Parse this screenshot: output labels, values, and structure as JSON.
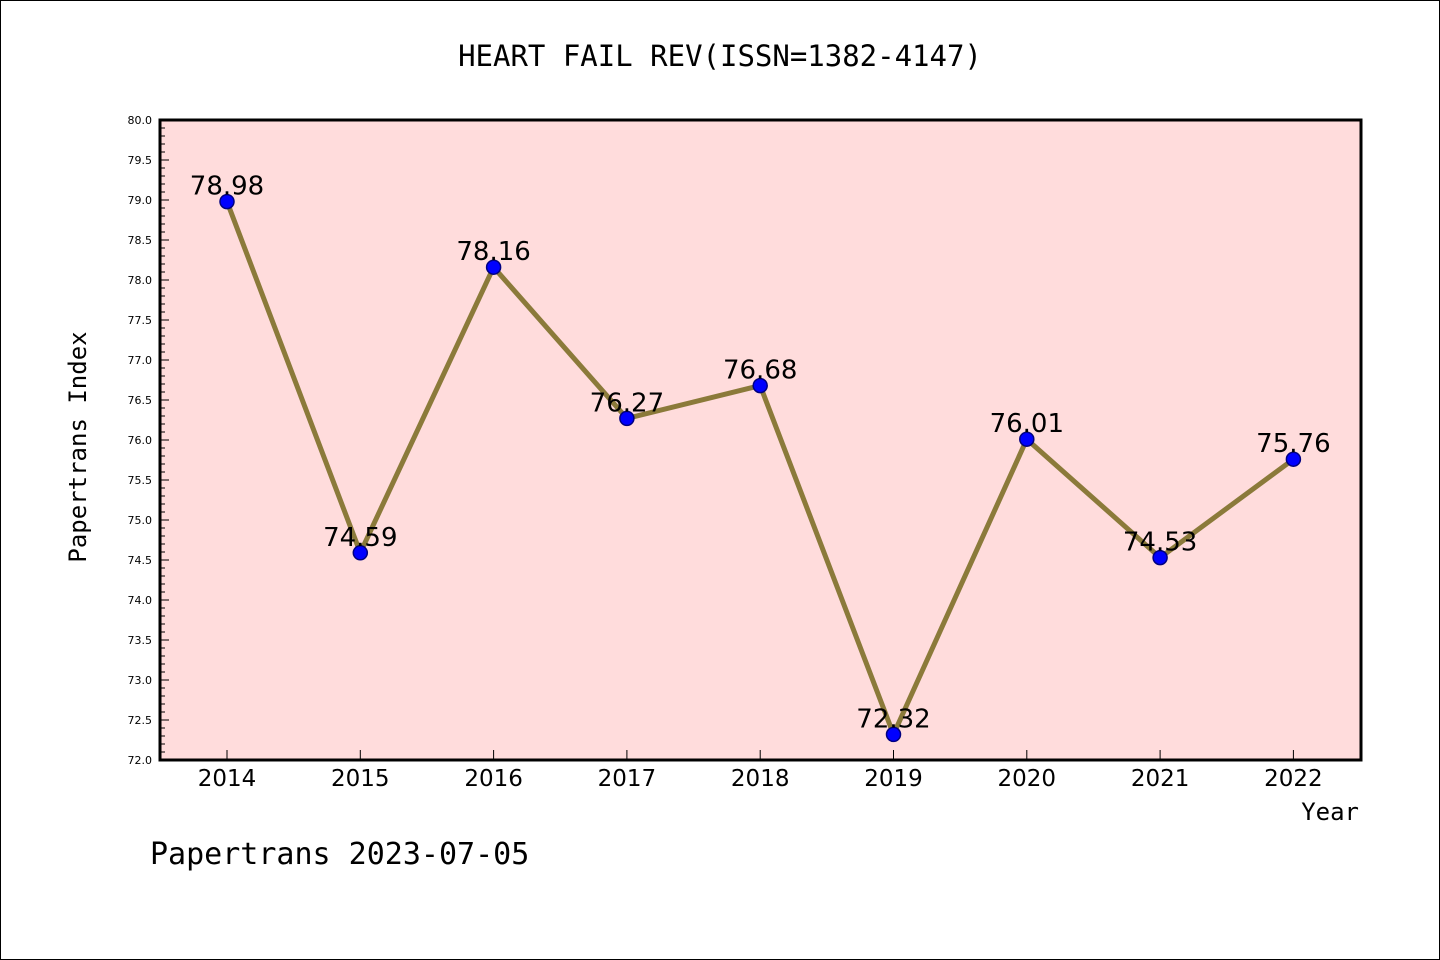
{
  "chart_data": {
    "type": "line",
    "title": "HEART FAIL REV(ISSN=1382-4147)",
    "xlabel": "Year",
    "ylabel": "Papertrans Index",
    "categories": [
      "2014",
      "2015",
      "2016",
      "2017",
      "2018",
      "2019",
      "2020",
      "2021",
      "2022"
    ],
    "series": [
      {
        "values": [
          78.98,
          74.59,
          78.16,
          76.27,
          76.68,
          72.32,
          76.01,
          74.53,
          75.76
        ],
        "labels": [
          "78.98",
          "74.59",
          "78.16",
          "76.27",
          "76.68",
          "72.32",
          "76.01",
          "74.53",
          "75.76"
        ]
      }
    ],
    "ylim": [
      72.0,
      80.0
    ],
    "yticks": [
      "72.0",
      "72.5",
      "73.0",
      "73.5",
      "74.0",
      "74.5",
      "75.0",
      "75.5",
      "76.0",
      "76.5",
      "77.0",
      "77.5",
      "78.0",
      "78.5",
      "79.0",
      "79.5",
      "80.0"
    ],
    "grid": false,
    "legend": "none",
    "colors": {
      "plot_background": "#ffdcdc",
      "line": "#8b7a3a",
      "marker": "#0000ff",
      "marker_edge": "#000080"
    }
  },
  "footer": {
    "watermark": "Papertrans 2023-07-05"
  }
}
